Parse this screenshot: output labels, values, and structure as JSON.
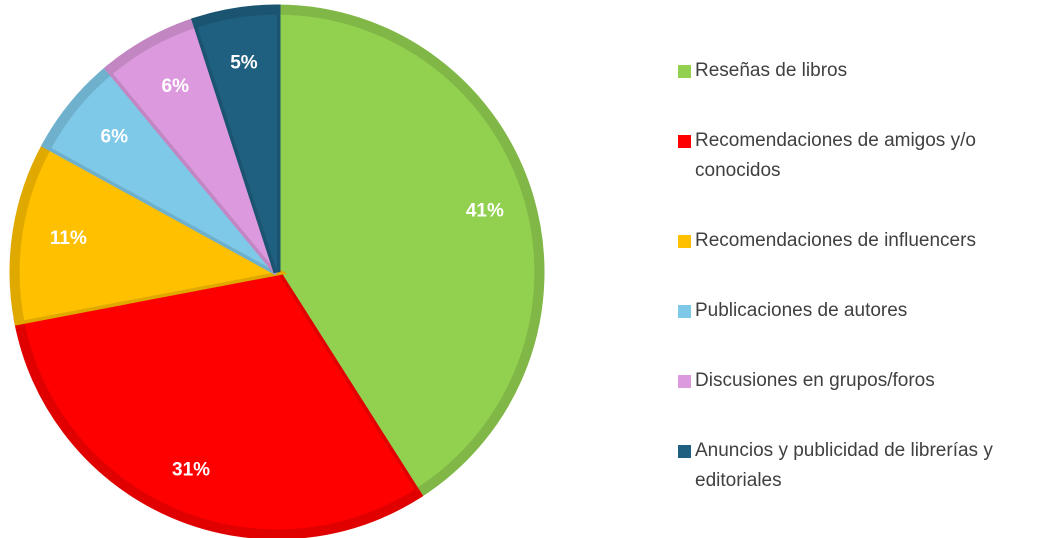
{
  "chart_data": {
    "type": "pie",
    "categories": [
      "Reseñas de libros",
      "Recomendaciones de amigos y/o conocidos",
      "Recomendaciones de influencers",
      "Publicaciones de autores",
      "Discusiones en grupos/foros",
      "Anuncios y publicidad de librerías y editoriales"
    ],
    "values": [
      41,
      31,
      11,
      6,
      6,
      5
    ],
    "value_labels": [
      "41%",
      "31%",
      "11%",
      "6%",
      "6%",
      "5%"
    ],
    "colors": [
      "#92d050",
      "#ff0000",
      "#ffc000",
      "#7ec8e8",
      "#dd99dd",
      "#1f5f7f"
    ],
    "legend": "right"
  }
}
